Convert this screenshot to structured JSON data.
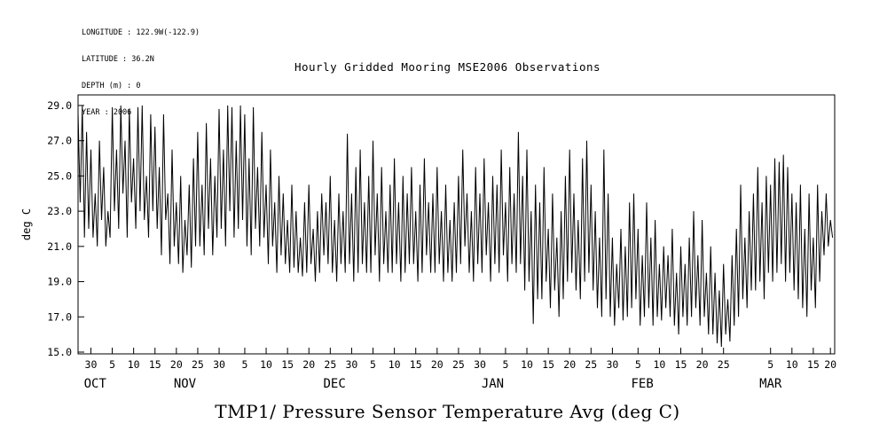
{
  "meta": {
    "lines": [
      "LONGITUDE : 122.9W(-122.9)",
      "LATITUDE : 36.2N",
      "DEPTH (m) : 0",
      "YEAR : 2006"
    ]
  },
  "header": {
    "title": "Hourly Gridded Mooring MSE2006 Observations"
  },
  "footer": {
    "title": "TMP1/ Pressure Sensor Temperature Avg (deg C)"
  },
  "chart_data": {
    "type": "line",
    "title": "Hourly Gridded Mooring MSE2006 Observations",
    "bottom_title": "TMP1/ Pressure Sensor Temperature Avg (deg C)",
    "ylabel": "deg C",
    "line_color": "#000000",
    "ylim": [
      14.9,
      29.6
    ],
    "yticks": [
      15.0,
      17.0,
      19.0,
      21.0,
      23.0,
      25.0,
      27.0,
      29.0
    ],
    "xlim": [
      0,
      177
    ],
    "x_start": 0,
    "x_step": 0.5,
    "xticks": [
      {
        "d": 3,
        "l": "30"
      },
      {
        "d": 8,
        "l": "5"
      },
      {
        "d": 13,
        "l": "10"
      },
      {
        "d": 18,
        "l": "15"
      },
      {
        "d": 23,
        "l": "20"
      },
      {
        "d": 28,
        "l": "25"
      },
      {
        "d": 33,
        "l": "30"
      },
      {
        "d": 39,
        "l": "5"
      },
      {
        "d": 44,
        "l": "10"
      },
      {
        "d": 49,
        "l": "15"
      },
      {
        "d": 54,
        "l": "20"
      },
      {
        "d": 59,
        "l": "25"
      },
      {
        "d": 64,
        "l": "30"
      },
      {
        "d": 69,
        "l": "5"
      },
      {
        "d": 74,
        "l": "10"
      },
      {
        "d": 79,
        "l": "15"
      },
      {
        "d": 84,
        "l": "20"
      },
      {
        "d": 89,
        "l": "25"
      },
      {
        "d": 94,
        "l": "30"
      },
      {
        "d": 100,
        "l": "5"
      },
      {
        "d": 105,
        "l": "10"
      },
      {
        "d": 110,
        "l": "15"
      },
      {
        "d": 115,
        "l": "20"
      },
      {
        "d": 120,
        "l": "25"
      },
      {
        "d": 125,
        "l": "30"
      },
      {
        "d": 131,
        "l": "5"
      },
      {
        "d": 136,
        "l": "10"
      },
      {
        "d": 141,
        "l": "15"
      },
      {
        "d": 146,
        "l": "20"
      },
      {
        "d": 151,
        "l": "25"
      },
      {
        "d": 162,
        "l": "5"
      },
      {
        "d": 167,
        "l": "10"
      },
      {
        "d": 172,
        "l": "15"
      },
      {
        "d": 176,
        "l": "20"
      }
    ],
    "months": [
      {
        "d": 4,
        "l": "OCT"
      },
      {
        "d": 25,
        "l": "NOV"
      },
      {
        "d": 60,
        "l": "DEC"
      },
      {
        "d": 97,
        "l": "JAN"
      },
      {
        "d": 132,
        "l": "FEB"
      },
      {
        "d": 162,
        "l": "MAR"
      }
    ],
    "values": [
      28.6,
      23.5,
      29.0,
      21.5,
      27.5,
      22.0,
      26.5,
      21.5,
      24.0,
      21.0,
      27.0,
      22.5,
      25.5,
      21.0,
      23.0,
      21.5,
      28.9,
      23.0,
      26.5,
      22.0,
      29.0,
      24.0,
      27.0,
      21.5,
      28.8,
      23.5,
      26.0,
      22.0,
      28.9,
      23.0,
      29.0,
      22.5,
      25.0,
      21.5,
      28.5,
      23.0,
      27.8,
      22.0,
      25.5,
      20.5,
      28.5,
      22.5,
      24.0,
      20.0,
      26.5,
      21.0,
      23.5,
      20.0,
      25.0,
      19.5,
      22.5,
      20.5,
      24.5,
      19.8,
      26.0,
      21.0,
      27.5,
      21.0,
      24.5,
      20.5,
      28.0,
      22.0,
      26.0,
      20.5,
      25.0,
      21.5,
      28.8,
      22.0,
      26.5,
      21.0,
      29.0,
      23.0,
      28.9,
      21.5,
      27.0,
      22.0,
      29.0,
      22.5,
      28.5,
      21.0,
      26.0,
      20.5,
      28.9,
      22.0,
      25.5,
      21.0,
      27.5,
      21.5,
      24.5,
      20.0,
      26.5,
      21.0,
      23.5,
      19.5,
      25.0,
      20.5,
      24.0,
      20.0,
      22.5,
      19.5,
      24.5,
      19.8,
      23.0,
      19.5,
      21.5,
      19.3,
      23.5,
      19.5,
      24.5,
      20.0,
      22.0,
      19.0,
      23.0,
      19.5,
      24.0,
      20.5,
      23.5,
      20.0,
      25.0,
      19.5,
      22.5,
      19.0,
      24.0,
      20.0,
      23.0,
      19.5,
      27.4,
      20.0,
      24.0,
      19.0,
      25.5,
      19.5,
      26.5,
      20.0,
      23.5,
      19.5,
      25.0,
      19.5,
      27.0,
      20.5,
      24.0,
      19.0,
      25.5,
      20.0,
      23.0,
      19.5,
      24.5,
      19.5,
      26.0,
      20.0,
      23.5,
      19.0,
      25.0,
      19.5,
      24.0,
      20.0,
      25.5,
      20.0,
      23.0,
      19.0,
      24.5,
      19.5,
      26.0,
      20.5,
      23.5,
      19.5,
      24.0,
      19.5,
      25.5,
      20.0,
      23.0,
      19.0,
      24.5,
      19.5,
      22.5,
      19.0,
      23.5,
      19.5,
      25.0,
      20.0,
      26.5,
      21.0,
      24.0,
      19.5,
      23.0,
      19.0,
      25.5,
      20.0,
      24.0,
      19.5,
      26.0,
      20.5,
      23.5,
      19.0,
      25.0,
      20.0,
      24.5,
      19.5,
      26.5,
      20.5,
      23.5,
      19.0,
      25.5,
      20.0,
      24.0,
      19.5,
      27.5,
      20.0,
      25.0,
      18.5,
      26.5,
      19.0,
      23.0,
      16.6,
      24.5,
      18.0,
      23.5,
      18.0,
      25.5,
      19.0,
      22.0,
      17.5,
      24.0,
      18.5,
      21.5,
      17.0,
      23.0,
      18.0,
      25.0,
      19.0,
      26.5,
      19.5,
      24.0,
      18.5,
      22.5,
      18.0,
      26.0,
      19.0,
      27.0,
      19.5,
      24.5,
      18.5,
      23.0,
      17.5,
      21.5,
      17.0,
      26.5,
      18.0,
      24.0,
      17.0,
      21.5,
      16.5,
      20.0,
      17.5,
      22.0,
      16.8,
      21.0,
      17.0,
      23.5,
      17.5,
      24.0,
      18.0,
      22.0,
      16.5,
      20.5,
      17.0,
      23.5,
      17.5,
      21.5,
      16.5,
      22.5,
      17.0,
      20.0,
      16.8,
      21.0,
      17.5,
      20.5,
      17.0,
      22.0,
      16.5,
      19.5,
      16.0,
      21.0,
      17.0,
      20.0,
      16.5,
      21.5,
      17.0,
      23.0,
      17.5,
      20.5,
      16.5,
      22.5,
      17.0,
      19.5,
      16.0,
      21.0,
      16.0,
      19.5,
      15.5,
      18.5,
      15.3,
      20.0,
      16.0,
      18.0,
      15.6,
      20.5,
      16.5,
      22.0,
      17.0,
      24.5,
      18.0,
      21.5,
      17.5,
      23.0,
      18.5,
      24.0,
      18.5,
      25.5,
      19.0,
      23.5,
      18.0,
      25.0,
      19.5,
      24.5,
      19.0,
      26.0,
      19.5,
      25.8,
      20.0,
      26.2,
      19.0,
      25.5,
      19.5,
      24.0,
      18.5,
      23.5,
      18.0,
      24.5,
      17.5,
      22.0,
      17.0,
      24.0,
      18.5,
      21.5,
      17.5,
      24.5,
      19.0,
      23.0,
      20.5,
      24.0,
      21.0,
      22.5,
      21.5
    ]
  }
}
